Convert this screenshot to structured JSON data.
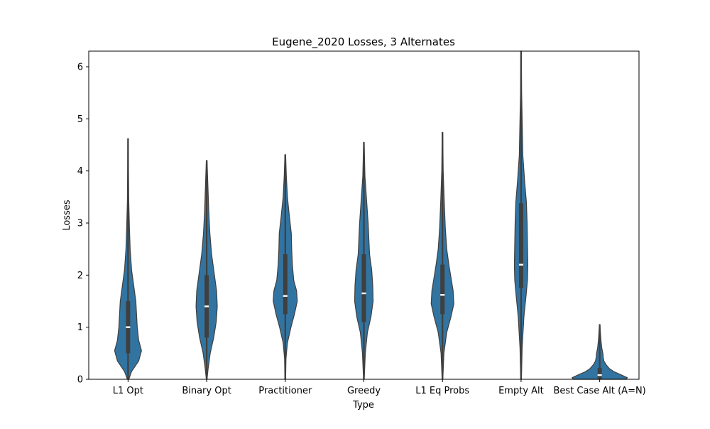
{
  "chart_data": {
    "type": "violin",
    "title": "Eugene_2020 Losses, 3 Alternates",
    "xlabel": "Type",
    "ylabel": "Losses",
    "ylim": [
      0,
      6.3
    ],
    "yticks": [
      0,
      1,
      2,
      3,
      4,
      5,
      6
    ],
    "grid": false,
    "color": "#3274a1",
    "edge_color": "#3f3f3f",
    "categories": [
      "L1 Opt",
      "Binary Opt",
      "Practitioner",
      "Greedy",
      "L1 Eq Probs",
      "Empty Alt",
      "Best Case Alt (A=N)"
    ],
    "violins": [
      {
        "category": "L1 Opt",
        "min": 0.0,
        "q1": 0.5,
        "median": 1.0,
        "q3": 1.5,
        "max": 4.62,
        "profile": [
          [
            0.0,
            0.02
          ],
          [
            0.15,
            0.1
          ],
          [
            0.35,
            0.3
          ],
          [
            0.55,
            0.38
          ],
          [
            0.75,
            0.3
          ],
          [
            1.0,
            0.26
          ],
          [
            1.25,
            0.24
          ],
          [
            1.5,
            0.22
          ],
          [
            1.8,
            0.16
          ],
          [
            2.1,
            0.1
          ],
          [
            2.5,
            0.06
          ],
          [
            2.9,
            0.04
          ],
          [
            3.4,
            0.02
          ],
          [
            4.0,
            0.012
          ],
          [
            4.62,
            0.008
          ]
        ]
      },
      {
        "category": "Binary Opt",
        "min": 0.0,
        "q1": 0.8,
        "median": 1.4,
        "q3": 2.0,
        "max": 4.2,
        "profile": [
          [
            0.0,
            0.01
          ],
          [
            0.2,
            0.04
          ],
          [
            0.5,
            0.1
          ],
          [
            0.8,
            0.2
          ],
          [
            1.1,
            0.27
          ],
          [
            1.4,
            0.3
          ],
          [
            1.7,
            0.28
          ],
          [
            2.0,
            0.22
          ],
          [
            2.4,
            0.14
          ],
          [
            2.8,
            0.09
          ],
          [
            3.2,
            0.06
          ],
          [
            3.6,
            0.04
          ],
          [
            4.0,
            0.02
          ],
          [
            4.2,
            0.01
          ]
        ]
      },
      {
        "category": "Practitioner",
        "min": 0.0,
        "q1": 1.25,
        "median": 1.6,
        "q3": 2.4,
        "max": 4.31,
        "profile": [
          [
            0.0,
            0.01
          ],
          [
            0.4,
            0.02
          ],
          [
            0.7,
            0.06
          ],
          [
            1.0,
            0.16
          ],
          [
            1.25,
            0.26
          ],
          [
            1.5,
            0.34
          ],
          [
            1.7,
            0.32
          ],
          [
            1.9,
            0.24
          ],
          [
            2.2,
            0.2
          ],
          [
            2.5,
            0.18
          ],
          [
            2.8,
            0.17
          ],
          [
            3.1,
            0.12
          ],
          [
            3.5,
            0.06
          ],
          [
            3.9,
            0.03
          ],
          [
            4.31,
            0.01
          ]
        ]
      },
      {
        "category": "Greedy",
        "min": 0.0,
        "q1": 1.1,
        "median": 1.65,
        "q3": 2.4,
        "max": 4.55,
        "profile": [
          [
            0.0,
            0.01
          ],
          [
            0.5,
            0.04
          ],
          [
            0.9,
            0.1
          ],
          [
            1.2,
            0.2
          ],
          [
            1.5,
            0.26
          ],
          [
            1.8,
            0.25
          ],
          [
            2.1,
            0.22
          ],
          [
            2.4,
            0.16
          ],
          [
            2.7,
            0.14
          ],
          [
            3.0,
            0.12
          ],
          [
            3.4,
            0.08
          ],
          [
            3.9,
            0.03
          ],
          [
            4.55,
            0.008
          ]
        ]
      },
      {
        "category": "L1 Eq Probs",
        "min": 0.0,
        "q1": 1.25,
        "median": 1.62,
        "q3": 2.2,
        "max": 4.74,
        "profile": [
          [
            0.0,
            0.01
          ],
          [
            0.5,
            0.04
          ],
          [
            0.9,
            0.12
          ],
          [
            1.2,
            0.24
          ],
          [
            1.45,
            0.32
          ],
          [
            1.7,
            0.3
          ],
          [
            1.95,
            0.24
          ],
          [
            2.2,
            0.18
          ],
          [
            2.5,
            0.12
          ],
          [
            2.9,
            0.08
          ],
          [
            3.4,
            0.05
          ],
          [
            4.0,
            0.02
          ],
          [
            4.74,
            0.008
          ]
        ]
      },
      {
        "category": "Empty Alt",
        "min": 0.0,
        "q1": 1.75,
        "median": 2.2,
        "q3": 3.38,
        "max": 6.3,
        "profile": [
          [
            0.0,
            0.01
          ],
          [
            0.6,
            0.03
          ],
          [
            1.2,
            0.08
          ],
          [
            1.6,
            0.14
          ],
          [
            1.9,
            0.18
          ],
          [
            2.2,
            0.19
          ],
          [
            2.6,
            0.18
          ],
          [
            3.0,
            0.17
          ],
          [
            3.4,
            0.15
          ],
          [
            3.8,
            0.1
          ],
          [
            4.3,
            0.05
          ],
          [
            5.0,
            0.03
          ],
          [
            5.5,
            0.015
          ],
          [
            6.3,
            0.008
          ]
        ]
      },
      {
        "category": "Best Case Alt (A=N)",
        "min": 0.0,
        "q1": 0.0,
        "median": 0.08,
        "q3": 0.22,
        "max": 1.05,
        "profile": [
          [
            0.0,
            0.75
          ],
          [
            0.03,
            0.78
          ],
          [
            0.08,
            0.62
          ],
          [
            0.14,
            0.42
          ],
          [
            0.2,
            0.28
          ],
          [
            0.28,
            0.18
          ],
          [
            0.35,
            0.12
          ],
          [
            0.42,
            0.1
          ],
          [
            0.5,
            0.09
          ],
          [
            0.6,
            0.06
          ],
          [
            0.75,
            0.035
          ],
          [
            0.9,
            0.02
          ],
          [
            1.05,
            0.008
          ]
        ]
      }
    ]
  }
}
